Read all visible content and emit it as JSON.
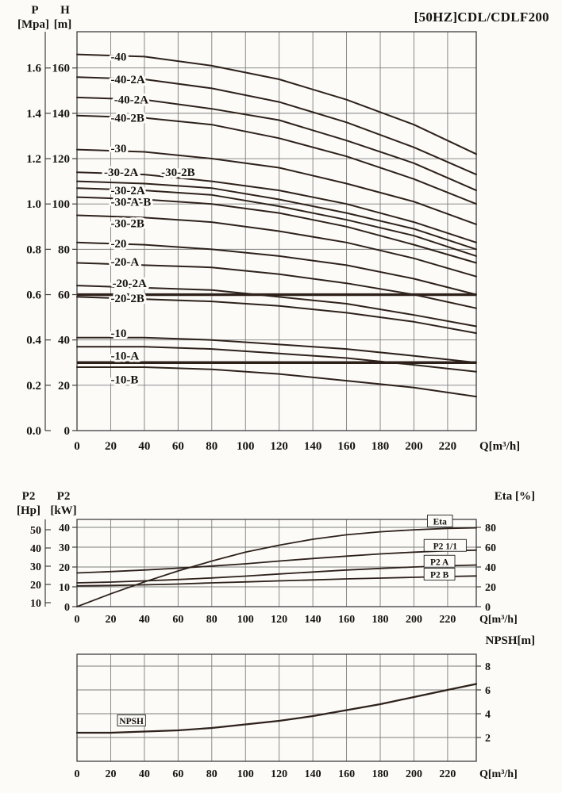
{
  "page": {
    "title": "[50HZ]CDL/CDLF200"
  },
  "chart_data": [
    {
      "id": "head-capacity",
      "type": "line",
      "x": {
        "label": "Q[m³/h]",
        "min": 0,
        "max": 237,
        "ticks": [
          0,
          20,
          40,
          60,
          80,
          100,
          120,
          140,
          160,
          180,
          200,
          220
        ]
      },
      "p_axis": {
        "line1": "P",
        "line2": "[Mpa]",
        "ticks": [
          "1.6",
          "1.4",
          "1.2",
          "1.0",
          "0.8",
          "0.6",
          "0.4",
          "0.2",
          "0.0"
        ]
      },
      "h_axis": {
        "line1": "H",
        "line2": "[m]",
        "max": 176,
        "ticks": [
          160,
          140,
          120,
          100,
          80,
          60,
          40,
          20,
          0
        ]
      },
      "sample_x": [
        0,
        40,
        80,
        120,
        160,
        200,
        237
      ],
      "ref_lines": [
        60,
        30
      ],
      "series": [
        {
          "label": "-40",
          "values": [
            166,
            165,
            161,
            155,
            146,
            135,
            122
          ],
          "label_at": [
            20,
            165
          ]
        },
        {
          "label": "-40-2A",
          "values": [
            156,
            155,
            151,
            145,
            136,
            125,
            113
          ],
          "label_at": [
            20,
            155
          ]
        },
        {
          "label": "-40-2A",
          "values": [
            147,
            146,
            142,
            137,
            128,
            118,
            106
          ],
          "label_at": [
            22,
            146
          ]
        },
        {
          "label": "-40-2B",
          "values": [
            139,
            138,
            135,
            129,
            121,
            111,
            100
          ],
          "label_at": [
            20,
            138
          ]
        },
        {
          "label": "-30",
          "values": [
            124,
            123,
            120,
            116,
            109,
            101,
            91
          ],
          "label_at": [
            20,
            124.5
          ]
        },
        {
          "label": "-30-2A",
          "values": [
            114,
            113,
            110,
            106,
            100,
            92,
            83
          ],
          "label_at": [
            16,
            114
          ]
        },
        {
          "label": "-30-2B",
          "values": [
            110,
            109,
            107,
            102,
            96,
            89,
            80
          ],
          "label_at": [
            50,
            114
          ]
        },
        {
          "label": "-30-2A",
          "values": [
            107,
            106,
            104,
            99,
            93,
            86,
            77
          ],
          "label_at": [
            20,
            106
          ]
        },
        {
          "label": "-30-A-B",
          "values": [
            103,
            102,
            100,
            96,
            90,
            82,
            74
          ],
          "label_at": [
            20,
            101
          ]
        },
        {
          "label": "-30-2B",
          "values": [
            95,
            94,
            92,
            88,
            83,
            76,
            68
          ],
          "label_at": [
            20,
            91.5
          ]
        },
        {
          "label": "-20",
          "values": [
            83,
            82,
            80,
            77,
            73,
            67,
            60
          ],
          "label_at": [
            20,
            82.5
          ]
        },
        {
          "label": "-20-A",
          "values": [
            74,
            73,
            72,
            69,
            65,
            60,
            54
          ],
          "label_at": [
            20,
            74.5
          ]
        },
        {
          "label": "-20-2A",
          "values": [
            64,
            63,
            62,
            59,
            56,
            51,
            46
          ],
          "label_at": [
            21,
            65
          ]
        },
        {
          "label": "-20-2B",
          "values": [
            59,
            58,
            57,
            55,
            52,
            48,
            43
          ],
          "label_at": [
            20,
            58.5
          ]
        },
        {
          "label": "-10",
          "values": [
            41,
            41,
            40,
            38,
            36,
            33,
            30
          ],
          "label_at": [
            20,
            43
          ]
        },
        {
          "label": "-10-A",
          "values": [
            37,
            37,
            36,
            34,
            32,
            29,
            26
          ],
          "label_at": [
            20,
            33
          ]
        },
        {
          "label": "-10-B",
          "values": [
            28,
            28,
            27,
            25,
            22,
            19,
            15
          ],
          "label_at": [
            20,
            22.5
          ]
        }
      ]
    },
    {
      "id": "power-efficiency",
      "type": "line",
      "x": {
        "label": "Q[m³/h]",
        "min": 0,
        "max": 237,
        "ticks": [
          0,
          20,
          40,
          60,
          80,
          100,
          120,
          140,
          160,
          180,
          200,
          220
        ]
      },
      "hp_axis": {
        "line1": "P2",
        "line2": "[Hp]",
        "ticks": [
          50,
          40,
          30,
          20,
          10
        ]
      },
      "kw_axis": {
        "line1": "P2",
        "line2": "[kW]",
        "max": 44,
        "ticks": [
          40,
          30,
          20,
          10,
          0
        ]
      },
      "eta_axis": {
        "label": "Eta [%]",
        "max": 88,
        "ticks": [
          80,
          60,
          40,
          20,
          0
        ]
      },
      "sample_x": [
        0,
        20,
        40,
        60,
        80,
        100,
        120,
        140,
        160,
        180,
        200,
        220,
        237
      ],
      "series": [
        {
          "label": "Eta",
          "axis": "eta",
          "values": [
            0,
            13,
            25,
            36,
            46,
            55,
            62,
            68,
            72.5,
            75.5,
            77.5,
            79,
            79.5
          ],
          "label_box": [
            208,
            41.8
          ]
        },
        {
          "label": "P2 1/1",
          "axis": "kw",
          "values": [
            17,
            17.7,
            18.5,
            19.4,
            20.5,
            21.6,
            23,
            24.3,
            25.5,
            26.6,
            27.5,
            28.2,
            28.5
          ],
          "label_box": [
            206,
            29.5
          ]
        },
        {
          "label": "P2 A",
          "axis": "kw",
          "values": [
            12,
            12.4,
            13,
            13.7,
            14.5,
            15.4,
            16.5,
            17.5,
            18.5,
            19.3,
            20,
            20.6,
            21
          ],
          "label_box": [
            206,
            21.5
          ]
        },
        {
          "label": "P2 B",
          "axis": "kw",
          "values": [
            10.5,
            10.7,
            11,
            11.4,
            12,
            12.5,
            13,
            13.5,
            14,
            14.4,
            14.8,
            15.2,
            15.5
          ],
          "label_box": [
            206,
            15
          ]
        }
      ]
    },
    {
      "id": "npsh",
      "type": "line",
      "x": {
        "label": "Q[m³/h]",
        "min": 0,
        "max": 237,
        "ticks": [
          0,
          20,
          40,
          60,
          80,
          100,
          120,
          140,
          160,
          180,
          200,
          220
        ]
      },
      "y_axis": {
        "label": "NPSH[m]",
        "max": 9,
        "ticks": [
          8,
          6,
          4,
          2
        ]
      },
      "sample_x": [
        0,
        20,
        40,
        60,
        80,
        100,
        120,
        140,
        160,
        180,
        200,
        220,
        237
      ],
      "series": [
        {
          "label": "NPSH",
          "values": [
            2.4,
            2.4,
            2.5,
            2.6,
            2.8,
            3.1,
            3.4,
            3.8,
            4.3,
            4.8,
            5.4,
            6.0,
            6.5
          ],
          "label_box": [
            24,
            3.2
          ]
        }
      ]
    }
  ]
}
